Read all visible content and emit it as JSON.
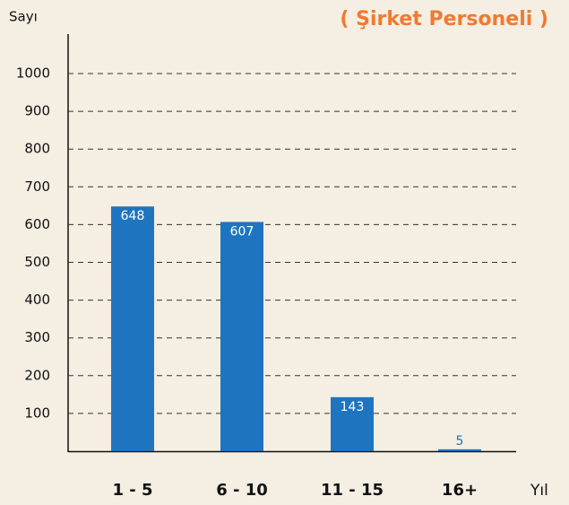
{
  "chart_data": {
    "type": "bar",
    "title": "( Şirket Personeli )",
    "y_label": "Sayı",
    "x_label": "Yıl",
    "categories": [
      "1 - 5",
      "6 - 10",
      "11 - 15",
      "16+"
    ],
    "values": [
      648,
      607,
      143,
      5
    ],
    "color": "#1f74c0",
    "ylim": [
      0,
      1000
    ],
    "yticks": [
      100,
      200,
      300,
      400,
      500,
      600,
      700,
      800,
      900,
      1000
    ],
    "grid": true
  }
}
